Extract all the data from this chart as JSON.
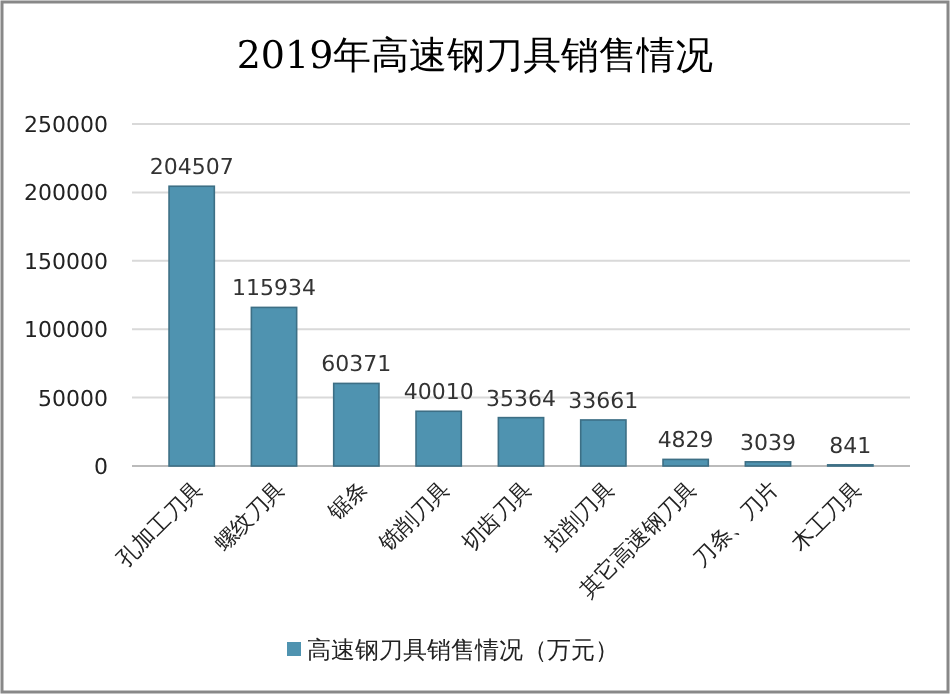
{
  "chart_data": {
    "type": "bar",
    "title": "2019年高速钢刀具销售情况",
    "categories": [
      "孔加工刀具",
      "螺纹刀具",
      "锯条",
      "铣削刀具",
      "切齿刀具",
      "拉削刀具",
      "其它高速钢刀具",
      "刀条、刀片",
      "木工刀具"
    ],
    "series": [
      {
        "name": "高速钢刀具销售情况（万元）",
        "color": "#4f93b0",
        "values": [
          204507,
          115934,
          60371,
          40010,
          35364,
          33661,
          4829,
          3039,
          841
        ]
      }
    ],
    "ylim": [
      0,
      250000
    ],
    "yticks": [
      0,
      50000,
      100000,
      150000,
      200000,
      250000
    ],
    "grid": "y",
    "legend": "bottom",
    "data_labels": true
  }
}
